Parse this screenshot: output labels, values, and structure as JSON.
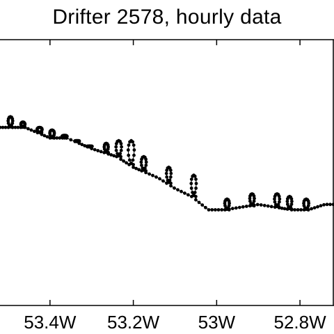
{
  "chart_data": {
    "type": "scatter",
    "title": "Drifter 2578, hourly data",
    "xlabel": "",
    "ylabel": "",
    "x_axis": {
      "reversed": true,
      "range": [
        53.52,
        52.72
      ],
      "ticks": [
        {
          "value": 53.4,
          "label": "53.4W"
        },
        {
          "value": 53.2,
          "label": "53.2W"
        },
        {
          "value": 53.0,
          "label": "53W"
        },
        {
          "value": 52.8,
          "label": "52.8W"
        }
      ]
    },
    "y_axis": {
      "range": [
        0,
        100
      ],
      "ticks": []
    },
    "grid": false,
    "legend": "none",
    "colors": {
      "points": "#000000",
      "axes": "#000000",
      "background": "#ffffff"
    },
    "series": [
      {
        "track": [
          [
            53.52,
            67
          ],
          [
            53.46,
            67
          ],
          [
            53.4,
            63
          ],
          [
            53.36,
            63
          ],
          [
            53.3,
            59
          ],
          [
            53.24,
            56
          ],
          [
            53.2,
            52
          ],
          [
            53.14,
            48
          ],
          [
            53.1,
            44
          ],
          [
            53.06,
            41
          ],
          [
            53.02,
            36
          ],
          [
            52.98,
            36
          ],
          [
            52.94,
            37
          ],
          [
            52.9,
            38
          ],
          [
            52.86,
            37
          ],
          [
            52.82,
            36
          ],
          [
            52.78,
            36
          ],
          [
            52.74,
            38
          ],
          [
            52.72,
            38
          ]
        ],
        "loops": [
          {
            "x": 53.5,
            "y": 71,
            "r": 0.013
          },
          {
            "x": 53.47,
            "y": 69,
            "r": 0.012
          },
          {
            "x": 53.43,
            "y": 67,
            "r": 0.014
          },
          {
            "x": 53.4,
            "y": 66,
            "r": 0.013
          },
          {
            "x": 53.37,
            "y": 64,
            "r": 0.014
          },
          {
            "x": 53.34,
            "y": 62,
            "r": 0.013
          },
          {
            "x": 53.31,
            "y": 60,
            "r": 0.014
          },
          {
            "x": 53.27,
            "y": 61,
            "r": 0.012
          },
          {
            "x": 53.24,
            "y": 62,
            "r": 0.015
          },
          {
            "x": 53.21,
            "y": 62,
            "r": 0.016
          },
          {
            "x": 53.18,
            "y": 56,
            "r": 0.014
          },
          {
            "x": 53.12,
            "y": 52,
            "r": 0.013
          },
          {
            "x": 53.06,
            "y": 49,
            "r": 0.014
          },
          {
            "x": 52.98,
            "y": 40,
            "r": 0.013
          },
          {
            "x": 52.92,
            "y": 42,
            "r": 0.013
          },
          {
            "x": 52.86,
            "y": 42,
            "r": 0.014
          },
          {
            "x": 52.83,
            "y": 41,
            "r": 0.013
          },
          {
            "x": 52.79,
            "y": 40,
            "r": 0.014
          }
        ]
      }
    ]
  }
}
